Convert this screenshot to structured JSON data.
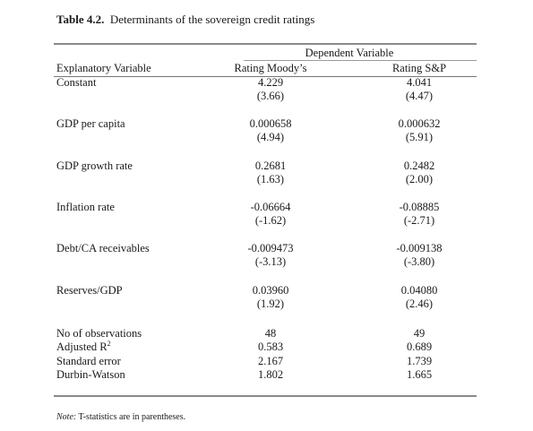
{
  "title": {
    "number": "Table 4.2.",
    "text": "Determinants of the sovereign credit ratings"
  },
  "header": {
    "dependent": "Dependent Variable",
    "explanatory": "Explanatory Variable",
    "col1": "Rating Moody’s",
    "col2": "Rating S&P"
  },
  "rows": [
    {
      "label": "Constant",
      "v1": "4.229",
      "t1": "(3.66)",
      "v2": "4.041",
      "t2": "(4.47)"
    },
    {
      "label": "GDP per capita",
      "v1": "0.000658",
      "t1": "(4.94)",
      "v2": "0.000632",
      "t2": "(5.91)"
    },
    {
      "label": "GDP growth rate",
      "v1": "0.2681",
      "t1": "(1.63)",
      "v2": "0.2482",
      "t2": "(2.00)"
    },
    {
      "label": "Inflation rate",
      "v1": "-0.06664",
      "t1": "(-1.62)",
      "v2": "-0.08885",
      "t2": "(-2.71)"
    },
    {
      "label": "Debt/CA receivables",
      "v1": "-0.009473",
      "t1": "(-3.13)",
      "v2": "-0.009138",
      "t2": "(-3.80)"
    },
    {
      "label": "Reserves/GDP",
      "v1": "0.03960",
      "t1": "(1.92)",
      "v2": "0.04080",
      "t2": "(2.46)"
    }
  ],
  "stats": [
    {
      "label": "No of observations",
      "v1": "48",
      "v2": "49"
    },
    {
      "label": "Adjusted R",
      "sup": "2",
      "v1": "0.583",
      "v2": "0.689"
    },
    {
      "label": "Standard error",
      "v1": "2.167",
      "v2": "1.739"
    },
    {
      "label": "Durbin-Watson",
      "v1": "1.802",
      "v2": "1.665"
    }
  ],
  "note": {
    "prefix": "Note:",
    "text": " T-statistics are in parentheses."
  }
}
